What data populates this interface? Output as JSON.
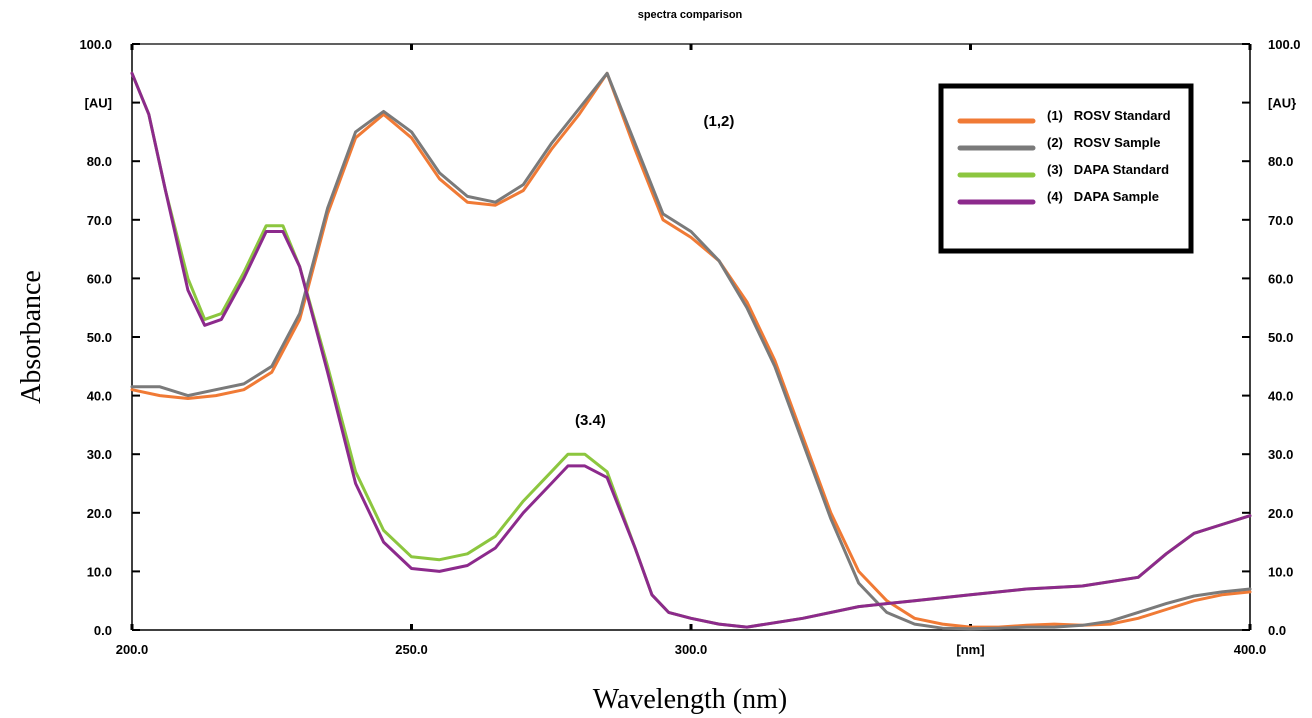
{
  "chart_data": {
    "type": "line",
    "title": "spectra comparison",
    "xlabel": "Wavelength (nm)",
    "ylabel": "Absorbance",
    "xlim": [
      200,
      400
    ],
    "ylim": [
      0,
      100
    ],
    "x_ticks": [
      "200.0",
      "250.0",
      "300.0",
      "[nm]",
      "400.0"
    ],
    "y_ticks": [
      "0.0",
      "10.0",
      "20.0",
      "30.0",
      "40.0",
      "50.0",
      "60.0",
      "70.0",
      "80.0",
      "[AU]",
      "100.0"
    ],
    "y_ticks_right": [
      "0.0",
      "10.0",
      "20.0",
      "30.0",
      "40.0",
      "50.0",
      "60.0",
      "70.0",
      "80.0",
      "[AU}",
      "100.0"
    ],
    "grid": false,
    "legend_position": "top-right",
    "annotations": [
      {
        "text": "(1,2)",
        "x": 305,
        "y": 86
      },
      {
        "text": "(3.4)",
        "x": 282,
        "y": 35
      }
    ],
    "series": [
      {
        "name": "(1)   ROSV Standard",
        "color": "#f07a35",
        "x": [
          200,
          205,
          210,
          215,
          220,
          225,
          230,
          235,
          240,
          245,
          250,
          255,
          260,
          265,
          270,
          275,
          280,
          285,
          290,
          295,
          300,
          305,
          310,
          315,
          320,
          325,
          330,
          335,
          340,
          345,
          350,
          355,
          360,
          365,
          370,
          375,
          380,
          385,
          390,
          395,
          400
        ],
        "values": [
          41,
          40,
          39.5,
          40,
          41,
          44,
          53,
          71,
          84,
          88,
          84,
          77,
          73,
          72.5,
          75,
          82,
          88,
          95,
          82,
          70,
          67,
          63,
          56,
          46,
          33,
          20,
          10,
          5,
          2,
          1,
          0.5,
          0.5,
          0.8,
          1,
          0.8,
          1,
          2,
          3.5,
          5,
          6,
          6.5
        ]
      },
      {
        "name": "(2)   ROSV Sample",
        "color": "#7a7a7a",
        "x": [
          200,
          205,
          210,
          215,
          220,
          225,
          230,
          235,
          240,
          245,
          250,
          255,
          260,
          265,
          270,
          275,
          280,
          285,
          290,
          295,
          300,
          305,
          310,
          315,
          320,
          325,
          330,
          335,
          340,
          345,
          350,
          355,
          360,
          365,
          370,
          375,
          380,
          385,
          390,
          395,
          400
        ],
        "values": [
          41.5,
          41.5,
          40,
          41,
          42,
          45,
          54,
          72,
          85,
          88.5,
          85,
          78,
          74,
          73,
          76,
          83,
          89,
          95,
          83,
          71,
          68,
          63,
          55,
          45,
          32,
          19,
          8,
          3,
          1,
          0.3,
          0.2,
          0.3,
          0.5,
          0.5,
          0.8,
          1.5,
          3,
          4.5,
          5.8,
          6.5,
          7
        ]
      },
      {
        "name": "(3)   DAPA Standard",
        "color": "#8cc63f",
        "x": [
          200,
          203,
          206,
          210,
          213,
          216,
          220,
          224,
          227,
          230,
          235,
          240,
          245,
          250,
          255,
          260,
          265,
          270,
          275,
          278,
          281,
          285,
          290,
          293,
          296,
          300,
          305,
          310,
          320,
          330,
          340,
          350,
          360,
          370,
          380,
          385,
          390,
          395,
          400
        ],
        "values": [
          95,
          88,
          75,
          60,
          53,
          54,
          61,
          69,
          69,
          62,
          45,
          27,
          17,
          12.5,
          12,
          13,
          16,
          22,
          27,
          30,
          30,
          27,
          14,
          6,
          3,
          2,
          1,
          0.5,
          2,
          4,
          5,
          6,
          7,
          7.5,
          9,
          13,
          16.5,
          18,
          19.5
        ]
      },
      {
        "name": "(4)   DAPA Sample",
        "color": "#8c2a8c",
        "x": [
          200,
          203,
          206,
          210,
          213,
          216,
          220,
          224,
          227,
          230,
          235,
          240,
          245,
          250,
          255,
          260,
          265,
          270,
          275,
          278,
          281,
          285,
          290,
          293,
          296,
          300,
          305,
          310,
          320,
          330,
          340,
          350,
          360,
          370,
          380,
          385,
          390,
          395,
          400
        ],
        "values": [
          95,
          88,
          75,
          58,
          52,
          53,
          60,
          68,
          68,
          62,
          44,
          25,
          15,
          10.5,
          10,
          11,
          14,
          20,
          25,
          28,
          28,
          26,
          14,
          6,
          3,
          2,
          1,
          0.5,
          2,
          4,
          5,
          6,
          7,
          7.5,
          9,
          13,
          16.5,
          18,
          19.5
        ]
      }
    ]
  }
}
